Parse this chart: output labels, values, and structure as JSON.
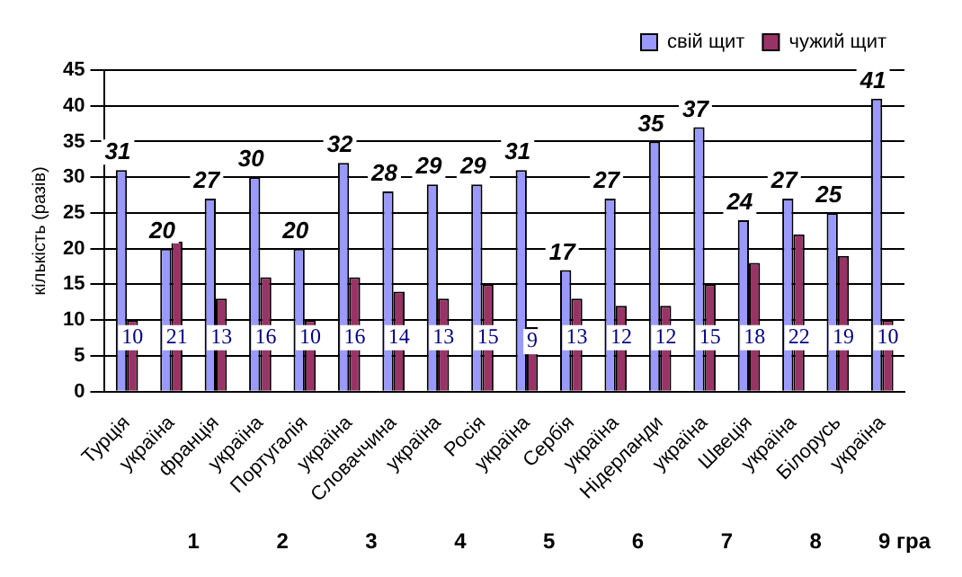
{
  "chart_data": {
    "type": "bar",
    "ylabel": "кількість (разів)",
    "categories": [
      "Турція",
      "україна",
      "франція",
      "україна",
      "Португалія",
      "україна",
      "Словаччина",
      "україна",
      "Росія",
      "україна",
      "Сербія",
      "україна",
      "Нідерланди",
      "україна",
      "Швеція",
      "україна",
      "Білорусь",
      "україна"
    ],
    "series": [
      {
        "name": "свій щит",
        "color": "#9999ff",
        "values": [
          31,
          20,
          27,
          30,
          20,
          32,
          28,
          29,
          29,
          31,
          17,
          27,
          35,
          37,
          24,
          27,
          25,
          41
        ]
      },
      {
        "name": "чужий щит",
        "color": "#993366",
        "values": [
          10,
          21,
          13,
          16,
          10,
          16,
          14,
          13,
          15,
          9,
          13,
          12,
          12,
          15,
          18,
          22,
          19,
          10
        ]
      }
    ],
    "ylim": [
      0,
      45
    ],
    "yticks": [
      0,
      5,
      10,
      15,
      20,
      25,
      30,
      35,
      40,
      45
    ],
    "grid": "y",
    "legend": "top right",
    "data_labels": true,
    "annotations": [
      "1",
      "2",
      "3",
      "4",
      "5",
      "6",
      "7",
      "8",
      "9 гра"
    ]
  }
}
